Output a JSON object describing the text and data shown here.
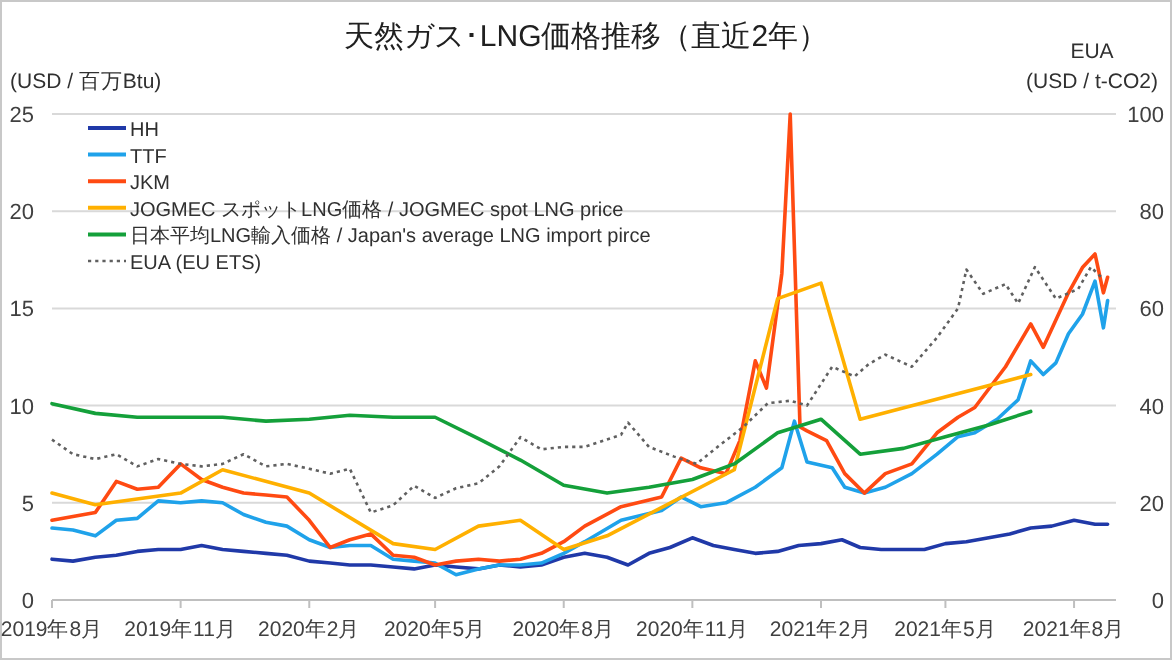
{
  "chart_data": {
    "type": "line",
    "title": "天然ガス･LNG価格推移（直近2年）",
    "ylabel": "(USD / 百万Btu)",
    "y2label": "EUA (USD / t-CO2)",
    "xlim": [
      "2019-08-01",
      "2021-08-31"
    ],
    "xticks": [
      {
        "value": "2019-08-01",
        "label": "2019年8月"
      },
      {
        "value": "2019-11-01",
        "label": "2019年11月"
      },
      {
        "value": "2020-02-01",
        "label": "2020年2月"
      },
      {
        "value": "2020-05-01",
        "label": "2020年5月"
      },
      {
        "value": "2020-08-01",
        "label": "2020年8月"
      },
      {
        "value": "2020-11-01",
        "label": "2020年11月"
      },
      {
        "value": "2021-02-01",
        "label": "2021年2月"
      },
      {
        "value": "2021-05-01",
        "label": "2021年5月"
      },
      {
        "value": "2021-08-01",
        "label": "2021年8月"
      }
    ],
    "ylim": [
      0,
      25
    ],
    "yticks": [
      0,
      5,
      10,
      15,
      20,
      25
    ],
    "y2lim": [
      0,
      100
    ],
    "y2ticks": [
      0,
      20,
      40,
      60,
      80,
      100
    ],
    "grid": "y",
    "legend": "top left",
    "series": [
      {
        "name": "HH",
        "color": "#2039a8",
        "x": [
          "2019-08-01",
          "2019-08-16",
          "2019-09-01",
          "2019-09-16",
          "2019-10-01",
          "2019-10-16",
          "2019-11-01",
          "2019-11-16",
          "2019-12-01",
          "2019-12-16",
          "2020-01-01",
          "2020-01-16",
          "2020-02-01",
          "2020-02-16",
          "2020-03-01",
          "2020-03-16",
          "2020-04-01",
          "2020-04-16",
          "2020-05-01",
          "2020-05-16",
          "2020-06-01",
          "2020-06-16",
          "2020-07-01",
          "2020-07-16",
          "2020-08-01",
          "2020-08-16",
          "2020-09-01",
          "2020-09-16",
          "2020-10-01",
          "2020-10-16",
          "2020-11-01",
          "2020-11-16",
          "2020-12-01",
          "2020-12-16",
          "2021-01-01",
          "2021-01-16",
          "2021-02-01",
          "2021-02-16",
          "2021-03-01",
          "2021-03-16",
          "2021-04-01",
          "2021-04-16",
          "2021-05-01",
          "2021-05-16",
          "2021-06-01",
          "2021-06-16",
          "2021-07-01",
          "2021-07-16",
          "2021-08-01",
          "2021-08-16",
          "2021-08-25"
        ],
        "values": [
          2.1,
          2.0,
          2.2,
          2.3,
          2.5,
          2.6,
          2.6,
          2.8,
          2.6,
          2.5,
          2.4,
          2.3,
          2.0,
          1.9,
          1.8,
          1.8,
          1.7,
          1.6,
          1.8,
          1.7,
          1.6,
          1.8,
          1.7,
          1.8,
          2.2,
          2.4,
          2.2,
          1.8,
          2.4,
          2.7,
          3.2,
          2.8,
          2.6,
          2.4,
          2.5,
          2.8,
          2.9,
          3.1,
          2.7,
          2.6,
          2.6,
          2.6,
          2.9,
          3.0,
          3.2,
          3.4,
          3.7,
          3.8,
          4.1,
          3.9,
          3.9
        ]
      },
      {
        "name": "TTF",
        "color": "#1fa2ea",
        "x": [
          "2019-08-01",
          "2019-08-16",
          "2019-09-01",
          "2019-09-16",
          "2019-10-01",
          "2019-10-16",
          "2019-11-01",
          "2019-11-16",
          "2019-12-01",
          "2019-12-16",
          "2020-01-01",
          "2020-01-16",
          "2020-02-01",
          "2020-02-16",
          "2020-03-01",
          "2020-03-16",
          "2020-04-01",
          "2020-04-16",
          "2020-05-01",
          "2020-05-16",
          "2020-06-01",
          "2020-06-16",
          "2020-07-01",
          "2020-07-16",
          "2020-08-01",
          "2020-08-16",
          "2020-09-11",
          "2020-10-10",
          "2020-10-24",
          "2020-11-07",
          "2020-11-25",
          "2020-12-16",
          "2021-01-04",
          "2021-01-13",
          "2021-01-22",
          "2021-02-09",
          "2021-02-18",
          "2021-03-04",
          "2021-03-19",
          "2021-04-07",
          "2021-04-25",
          "2021-05-10",
          "2021-05-22",
          "2021-06-07",
          "2021-06-22",
          "2021-07-01",
          "2021-07-10",
          "2021-07-19",
          "2021-07-28",
          "2021-08-07",
          "2021-08-16",
          "2021-08-22",
          "2021-08-25"
        ],
        "values": [
          3.7,
          3.6,
          3.3,
          4.1,
          4.2,
          5.1,
          5.0,
          5.1,
          5.0,
          4.4,
          4.0,
          3.8,
          3.1,
          2.7,
          2.8,
          2.8,
          2.1,
          2.0,
          1.9,
          1.3,
          1.6,
          1.8,
          1.8,
          1.9,
          2.4,
          3.0,
          4.1,
          4.6,
          5.3,
          4.8,
          5.0,
          5.8,
          6.8,
          9.2,
          7.1,
          6.8,
          5.8,
          5.5,
          5.8,
          6.5,
          7.5,
          8.4,
          8.6,
          9.3,
          10.3,
          12.3,
          11.6,
          12.2,
          13.7,
          14.7,
          16.4,
          14.0,
          15.4
        ]
      },
      {
        "name": "JKM",
        "color": "#ff4a12",
        "x": [
          "2019-08-01",
          "2019-08-16",
          "2019-09-01",
          "2019-09-16",
          "2019-10-01",
          "2019-10-16",
          "2019-11-01",
          "2019-11-16",
          "2019-12-01",
          "2019-12-16",
          "2020-01-01",
          "2020-01-16",
          "2020-02-01",
          "2020-02-16",
          "2020-03-01",
          "2020-03-16",
          "2020-04-01",
          "2020-04-16",
          "2020-05-01",
          "2020-05-16",
          "2020-06-01",
          "2020-06-16",
          "2020-07-01",
          "2020-07-16",
          "2020-08-01",
          "2020-08-16",
          "2020-09-11",
          "2020-10-10",
          "2020-10-24",
          "2020-11-07",
          "2020-11-25",
          "2020-12-05",
          "2020-12-16",
          "2020-12-24",
          "2021-01-04",
          "2021-01-10",
          "2021-01-17",
          "2021-01-22",
          "2021-02-05",
          "2021-02-18",
          "2021-03-04",
          "2021-03-19",
          "2021-04-07",
          "2021-04-25",
          "2021-05-10",
          "2021-05-22",
          "2021-06-13",
          "2021-07-01",
          "2021-07-10",
          "2021-07-19",
          "2021-07-28",
          "2021-08-07",
          "2021-08-16",
          "2021-08-22",
          "2021-08-25"
        ],
        "values": [
          4.1,
          4.3,
          4.5,
          6.1,
          5.7,
          5.8,
          7.0,
          6.2,
          5.8,
          5.5,
          5.4,
          5.3,
          4.1,
          2.7,
          3.1,
          3.4,
          2.3,
          2.2,
          1.8,
          2.0,
          2.1,
          2.0,
          2.1,
          2.4,
          3.0,
          3.8,
          4.8,
          5.3,
          7.3,
          6.8,
          6.5,
          8.2,
          12.3,
          10.9,
          16.8,
          25,
          8.9,
          8.7,
          8.2,
          6.5,
          5.5,
          6.5,
          7.0,
          8.6,
          9.4,
          9.9,
          12.0,
          14.2,
          13.0,
          14.4,
          15.8,
          17.1,
          17.8,
          15.8,
          16.6
        ]
      },
      {
        "name": "JOGMEC スポットLNG価格 / JOGMEC spot LNG price",
        "color": "#ffb000",
        "x": [
          "2019-08-01",
          "2019-09-01",
          "2019-11-01",
          "2019-12-01",
          "2020-02-01",
          "2020-04-01",
          "2020-05-01",
          "2020-06-01",
          "2020-07-01",
          "2020-08-01",
          "2020-09-01",
          "2020-12-01",
          "2021-01-01",
          "2021-02-01",
          "2021-03-01",
          "2021-07-01"
        ],
        "values": [
          5.5,
          4.9,
          5.5,
          6.7,
          5.5,
          2.9,
          2.6,
          3.8,
          4.1,
          2.6,
          3.3,
          6.7,
          15.5,
          16.3,
          9.3,
          11.6
        ]
      },
      {
        "name": "日本平均LNG輸入価格 / Japan's average LNG import pirce",
        "color": "#14a03a",
        "x": [
          "2019-08-01",
          "2019-09-01",
          "2019-10-01",
          "2019-11-01",
          "2019-12-01",
          "2020-01-01",
          "2020-02-01",
          "2020-03-01",
          "2020-04-01",
          "2020-05-01",
          "2020-06-01",
          "2020-07-01",
          "2020-08-01",
          "2020-09-01",
          "2020-10-01",
          "2020-11-01",
          "2020-12-01",
          "2021-01-01",
          "2021-02-01",
          "2021-03-01",
          "2021-04-01",
          "2021-05-01",
          "2021-06-01",
          "2021-07-01"
        ],
        "values": [
          10.1,
          9.6,
          9.4,
          9.4,
          9.4,
          9.2,
          9.3,
          9.5,
          9.4,
          9.4,
          8.3,
          7.2,
          5.9,
          5.5,
          5.8,
          6.2,
          7.0,
          8.6,
          9.3,
          7.5,
          7.8,
          8.4,
          9.0,
          9.7
        ]
      },
      {
        "name": "EUA (EU ETS)",
        "color": "#606060",
        "axis": "y2",
        "line_style": "dotted",
        "x": [
          "2019-08-01",
          "2019-08-16",
          "2019-09-01",
          "2019-09-16",
          "2019-10-01",
          "2019-10-16",
          "2019-11-01",
          "2019-11-16",
          "2019-12-01",
          "2019-12-16",
          "2020-01-01",
          "2020-01-16",
          "2020-02-01",
          "2020-02-16",
          "2020-03-01",
          "2020-03-16",
          "2020-04-01",
          "2020-04-16",
          "2020-05-01",
          "2020-05-16",
          "2020-06-01",
          "2020-06-16",
          "2020-07-01",
          "2020-07-16",
          "2020-08-01",
          "2020-08-16",
          "2020-09-11",
          "2020-09-16",
          "2020-10-01",
          "2020-10-19",
          "2020-11-04",
          "2020-11-19",
          "2020-12-07",
          "2020-12-25",
          "2021-01-10",
          "2021-01-22",
          "2021-02-09",
          "2021-02-25",
          "2021-03-07",
          "2021-03-19",
          "2021-04-07",
          "2021-04-25",
          "2021-05-10",
          "2021-05-16",
          "2021-05-28",
          "2021-06-13",
          "2021-06-22",
          "2021-07-04",
          "2021-07-19",
          "2021-08-04",
          "2021-08-13",
          "2021-08-22"
        ],
        "values": [
          33,
          30,
          29,
          30,
          27.5,
          29,
          28,
          27.5,
          28,
          30,
          27.5,
          28,
          27,
          26,
          27,
          18,
          19.5,
          23.5,
          21,
          23,
          24,
          27.5,
          33.5,
          31,
          31.5,
          31.5,
          34,
          36.5,
          31.5,
          29.5,
          28,
          31.5,
          35.5,
          40.5,
          41,
          40,
          48,
          46,
          48.5,
          50.5,
          48,
          54,
          60,
          68,
          63,
          65,
          61,
          68.5,
          62,
          64,
          68.5,
          66
        ]
      }
    ]
  }
}
